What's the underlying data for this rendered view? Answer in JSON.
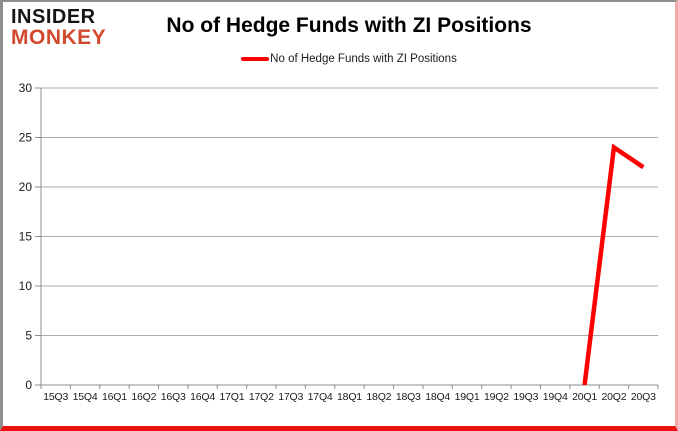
{
  "logo": {
    "line1": "INSIDER",
    "line2": "MONKEY",
    "line1_color": "#151515",
    "line2_color": "#d24a2e"
  },
  "header": {
    "title": "No of Hedge Funds with ZI Positions"
  },
  "legend": {
    "label": "No of Hedge Funds with ZI Positions",
    "marker_color": "#fe0000"
  },
  "chart_data": {
    "type": "line",
    "title": "No of Hedge Funds with ZI Positions",
    "categories": [
      "15Q3",
      "15Q4",
      "16Q1",
      "16Q2",
      "16Q3",
      "16Q4",
      "17Q1",
      "17Q2",
      "17Q3",
      "17Q4",
      "18Q1",
      "18Q2",
      "18Q3",
      "18Q4",
      "19Q1",
      "19Q2",
      "19Q3",
      "19Q4",
      "20Q1",
      "20Q2",
      "20Q3"
    ],
    "series": [
      {
        "name": "No of Hedge Funds with ZI Positions",
        "values": [
          null,
          null,
          null,
          null,
          null,
          null,
          null,
          null,
          null,
          null,
          null,
          null,
          null,
          null,
          null,
          null,
          null,
          null,
          0,
          24,
          22
        ]
      }
    ],
    "xlabel": "",
    "ylabel": "",
    "ylim": [
      0,
      30
    ],
    "yticks": [
      0,
      5,
      10,
      15,
      20,
      25,
      30
    ],
    "grid": "horizontal",
    "legend_position": "top",
    "colors": {
      "line": "#fe0000",
      "grid": "#ababab",
      "axis": "#8c8c8c",
      "tick_text": "#1a1a1a",
      "background": "#ffffff",
      "border_bottom": "#ea1111",
      "border_right": "#f2aaa5",
      "border_topleft": "#8f8f8f"
    }
  }
}
